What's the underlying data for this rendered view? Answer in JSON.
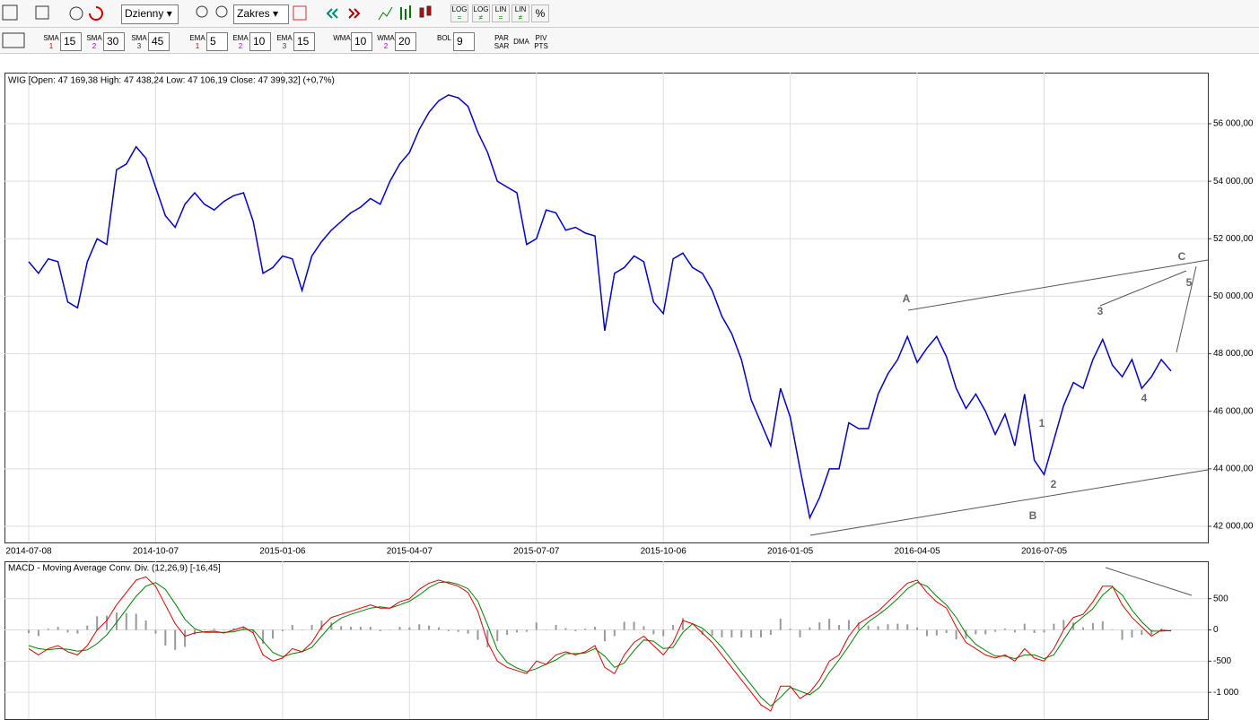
{
  "toolbar": {
    "interval": "Dzienny",
    "range": "Zakres",
    "scale_buttons": [
      {
        "label": "LOG",
        "sub": "="
      },
      {
        "label": "LOG",
        "sub": "≠"
      },
      {
        "label": "LIN",
        "sub": "="
      },
      {
        "label": "LIN",
        "sub": "≠"
      },
      {
        "label": "%"
      }
    ],
    "indicators": [
      {
        "name": "SMA",
        "index": "1",
        "value": "15"
      },
      {
        "name": "SMA",
        "index": "2",
        "value": "30"
      },
      {
        "name": "SMA",
        "index": "3",
        "value": "45"
      },
      {
        "name": "EMA",
        "index": "1",
        "value": "5"
      },
      {
        "name": "EMA",
        "index": "2",
        "value": "10"
      },
      {
        "name": "EMA",
        "index": "3",
        "value": "15"
      },
      {
        "name": "WMA",
        "value": "10"
      },
      {
        "name": "WMA",
        "index": "2",
        "value": "20"
      },
      {
        "name": "BOL",
        "value": "9"
      }
    ],
    "buttons": [
      [
        "PAR",
        "SAR"
      ],
      [
        "DMA"
      ],
      [
        "PIV",
        "PTS"
      ]
    ]
  },
  "chart_data": [
    {
      "type": "line",
      "title": "WIG [Open: 47 169,38  High: 47 438,24  Low: 47 106,19  Close: 47 399,32] (+0,7%)",
      "categories": [
        "2014-07-08",
        null,
        null,
        null,
        null,
        null,
        null,
        null,
        null,
        null,
        null,
        null,
        null,
        "2014-10-07",
        null,
        null,
        null,
        null,
        null,
        null,
        null,
        null,
        null,
        null,
        null,
        null,
        "2015-01-06",
        null,
        null,
        null,
        null,
        null,
        null,
        null,
        null,
        null,
        null,
        null,
        null,
        "2015-04-07",
        null,
        null,
        null,
        null,
        null,
        null,
        null,
        null,
        null,
        null,
        null,
        null,
        "2015-07-07",
        null,
        null,
        null,
        null,
        null,
        null,
        null,
        null,
        null,
        null,
        null,
        null,
        "2015-10-06",
        null,
        null,
        null,
        null,
        null,
        null,
        null,
        null,
        null,
        null,
        null,
        null,
        "2016-01-05",
        null,
        null,
        null,
        null,
        null,
        null,
        null,
        null,
        null,
        null,
        null,
        null,
        "2016-04-05",
        null,
        null,
        null,
        null,
        null,
        null,
        null,
        null,
        null,
        null,
        null,
        null,
        "2016-07-05",
        null,
        null,
        null,
        null,
        null,
        null,
        null,
        null,
        null,
        null,
        null,
        null,
        null
      ],
      "values": [
        51200,
        50800,
        51300,
        51200,
        49800,
        49600,
        51200,
        52000,
        51800,
        54400,
        54600,
        55200,
        54800,
        53800,
        52800,
        52400,
        53200,
        53600,
        53200,
        53000,
        53300,
        53500,
        53600,
        52600,
        50800,
        51000,
        51400,
        51300,
        50200,
        51400,
        51900,
        52300,
        52600,
        52900,
        53100,
        53400,
        53200,
        54000,
        54600,
        55000,
        55800,
        56400,
        56800,
        57000,
        56900,
        56600,
        55700,
        55000,
        54000,
        53800,
        53600,
        51800,
        52000,
        53000,
        52900,
        52300,
        52400,
        52200,
        52100,
        48800,
        50800,
        51000,
        51400,
        51200,
        49800,
        49400,
        51300,
        51500,
        51000,
        50800,
        50200,
        49300,
        48700,
        47800,
        46400,
        45600,
        44800,
        46800,
        45800,
        44000,
        42300,
        43000,
        44000,
        44000,
        45600,
        45400,
        45400,
        46600,
        47300,
        47800,
        48600,
        47700,
        48200,
        48600,
        47900,
        46800,
        46100,
        46600,
        46000,
        45200,
        45900,
        44800,
        46600,
        44300,
        43800,
        45000,
        46200,
        47000,
        46800,
        47800,
        48500,
        47600,
        47200,
        47800,
        46800,
        47200,
        47800,
        47399.32
      ],
      "color": "#0000cc",
      "ylim": [
        41439,
        57777
      ],
      "yticks": [
        {
          "value": 42000,
          "label": "42 000,00"
        },
        {
          "value": 44000,
          "label": "44 000,00"
        },
        {
          "value": 46000,
          "label": "46 000,00"
        },
        {
          "value": 48000,
          "label": "48 000,00"
        },
        {
          "value": 50000,
          "label": "50 000,00"
        },
        {
          "value": 52000,
          "label": "52 000,00"
        },
        {
          "value": 54000,
          "label": "54 000,00"
        },
        {
          "value": 56000,
          "label": "56 000,00"
        }
      ],
      "grid": true,
      "annotations": [
        "A",
        "B",
        "C",
        "1",
        "2",
        "3",
        "4",
        "5"
      ]
    },
    {
      "type": "line",
      "title": "MACD - Moving Average Conv. Div. (12,26,9) [-16,45]",
      "series": [
        {
          "type": "bar",
          "color": "#9a9a9a",
          "values": [
            -50,
            -100,
            20,
            50,
            -40,
            -60,
            70,
            220,
            230,
            280,
            270,
            260,
            150,
            -60,
            -250,
            -320,
            -270,
            -70,
            10,
            20,
            -10,
            30,
            40,
            -50,
            -220,
            -140,
            -20,
            80,
            0,
            80,
            150,
            120,
            60,
            50,
            50,
            50,
            -20,
            0,
            50,
            40,
            90,
            70,
            40,
            -20,
            -30,
            -60,
            -160,
            -280,
            -180,
            -80,
            -40,
            -30,
            120,
            0,
            80,
            30,
            -20,
            20,
            50,
            -180,
            -100,
            130,
            130,
            60,
            -70,
            -100,
            80,
            190,
            0,
            -80,
            -90,
            -120,
            -120,
            -120,
            -120,
            -120,
            -80,
            180,
            20,
            -120,
            40,
            120,
            180,
            80,
            160,
            120,
            70,
            60,
            90,
            100,
            90,
            40,
            -100,
            -90,
            -50,
            -150,
            -140,
            -70,
            -70,
            -30,
            20,
            -40,
            100,
            -50,
            -40,
            100,
            160,
            120,
            40,
            110,
            140,
            10,
            -160,
            -120,
            -80,
            -80,
            20,
            -6
          ]
        },
        {
          "color": "#008000",
          "values": [
            -250,
            -300,
            -320,
            -300,
            -310,
            -340,
            -320,
            -220,
            -80,
            120,
            330,
            540,
            700,
            760,
            650,
            420,
            170,
            20,
            -40,
            -40,
            -40,
            -30,
            10,
            0,
            -180,
            -360,
            -430,
            -380,
            -350,
            -280,
            -100,
            80,
            190,
            250,
            300,
            350,
            370,
            350,
            400,
            460,
            560,
            680,
            760,
            770,
            730,
            660,
            460,
            80,
            -320,
            -520,
            -610,
            -670,
            -620,
            -550,
            -480,
            -380,
            -380,
            -370,
            -300,
            -420,
            -600,
            -530,
            -330,
            -160,
            -180,
            -300,
            -280,
            -40,
            100,
            30,
            -110,
            -280,
            -480,
            -680,
            -880,
            -1080,
            -1220,
            -1080,
            -920,
            -980,
            -1040,
            -920,
            -680,
            -480,
            -260,
            -20,
            130,
            240,
            360,
            500,
            660,
            760,
            700,
            540,
            400,
            200,
            -60,
            -230,
            -330,
            -420,
            -420,
            -460,
            -400,
            -400,
            -460,
            -400,
            -160,
            80,
            210,
            340,
            560,
            690,
            560,
            320,
            130,
            -20,
            -20,
            -10
          ]
        },
        {
          "color": "#e00000",
          "values": [
            -300,
            -400,
            -300,
            -250,
            -350,
            -400,
            -250,
            0,
            150,
            400,
            600,
            800,
            850,
            700,
            400,
            100,
            -100,
            -50,
            -30,
            -20,
            -50,
            0,
            50,
            -50,
            -400,
            -500,
            -450,
            -300,
            -350,
            -200,
            50,
            200,
            250,
            300,
            350,
            400,
            350,
            350,
            450,
            500,
            650,
            750,
            800,
            750,
            700,
            600,
            300,
            -200,
            -500,
            -600,
            -650,
            -700,
            -500,
            -550,
            -400,
            -350,
            -400,
            -350,
            -250,
            -600,
            -700,
            -400,
            -200,
            -100,
            -250,
            -400,
            -200,
            150,
            100,
            -50,
            -200,
            -400,
            -600,
            -800,
            -1000,
            -1200,
            -1300,
            -900,
            -900,
            -1100,
            -1000,
            -800,
            -500,
            -400,
            -100,
            100,
            200,
            300,
            450,
            600,
            750,
            800,
            600,
            450,
            350,
            50,
            -200,
            -300,
            -400,
            -450,
            -400,
            -500,
            -300,
            -450,
            -500,
            -300,
            0,
            200,
            250,
            450,
            700,
            700,
            400,
            200,
            50,
            -100,
            0,
            -16.45
          ]
        }
      ],
      "ylim": [
        -1429,
        1100
      ],
      "yticks": [
        {
          "value": -1000,
          "label": "-1 000"
        },
        -500,
        0,
        500
      ],
      "grid": true
    }
  ]
}
